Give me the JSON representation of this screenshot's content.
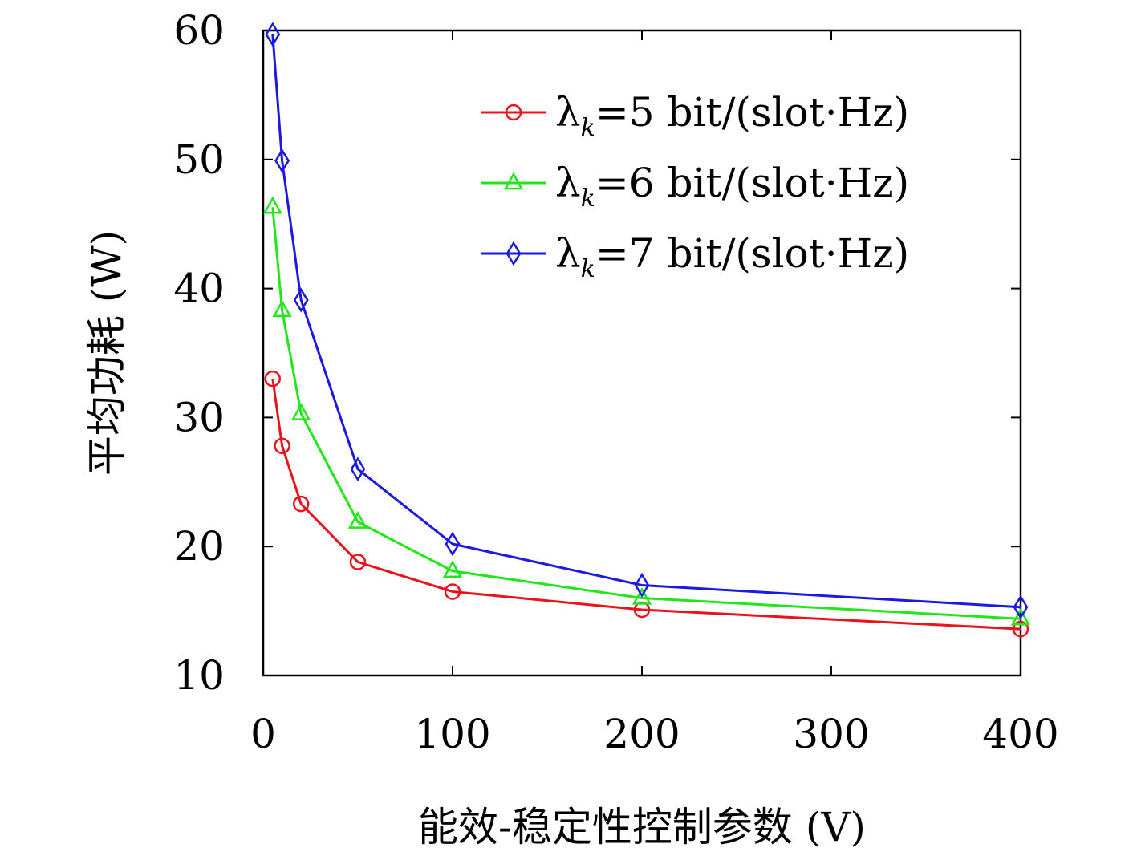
{
  "chart_data": {
    "type": "line",
    "title": "",
    "xlabel": "能效-稳定性控制参数 (V)",
    "ylabel": "平均功耗 (W)",
    "xlim": [
      0,
      400
    ],
    "ylim": [
      10,
      60
    ],
    "xticks": [
      0,
      100,
      200,
      300,
      400
    ],
    "yticks": [
      10,
      20,
      30,
      40,
      50,
      60
    ],
    "xtick_labels": [
      "0",
      "100",
      "200",
      "300",
      "400"
    ],
    "ytick_labels": [
      "10",
      "20",
      "30",
      "40",
      "50",
      "60"
    ],
    "grid": false,
    "legend_position": "top-right",
    "x": [
      5,
      10,
      20,
      50,
      100,
      200,
      400
    ],
    "series": [
      {
        "legend_main": "λ",
        "legend_sub": "k",
        "legend_rest": "=5 bit/(slot·Hz)",
        "color": "#e8141c",
        "marker": "circle",
        "values": [
          33.0,
          27.8,
          23.3,
          18.8,
          16.5,
          15.1,
          13.6
        ]
      },
      {
        "legend_main": "λ",
        "legend_sub": "k",
        "legend_rest": "=6 bit/(slot·Hz)",
        "color": "#22e61a",
        "marker": "triangle",
        "values": [
          46.3,
          38.3,
          30.3,
          21.9,
          18.1,
          16.0,
          14.4
        ]
      },
      {
        "legend_main": "λ",
        "legend_sub": "k",
        "legend_rest": "=7 bit/(slot·Hz)",
        "color": "#1a1ae0",
        "marker": "diamond",
        "values": [
          59.7,
          49.9,
          39.1,
          26.0,
          20.2,
          17.0,
          15.3
        ]
      }
    ]
  }
}
